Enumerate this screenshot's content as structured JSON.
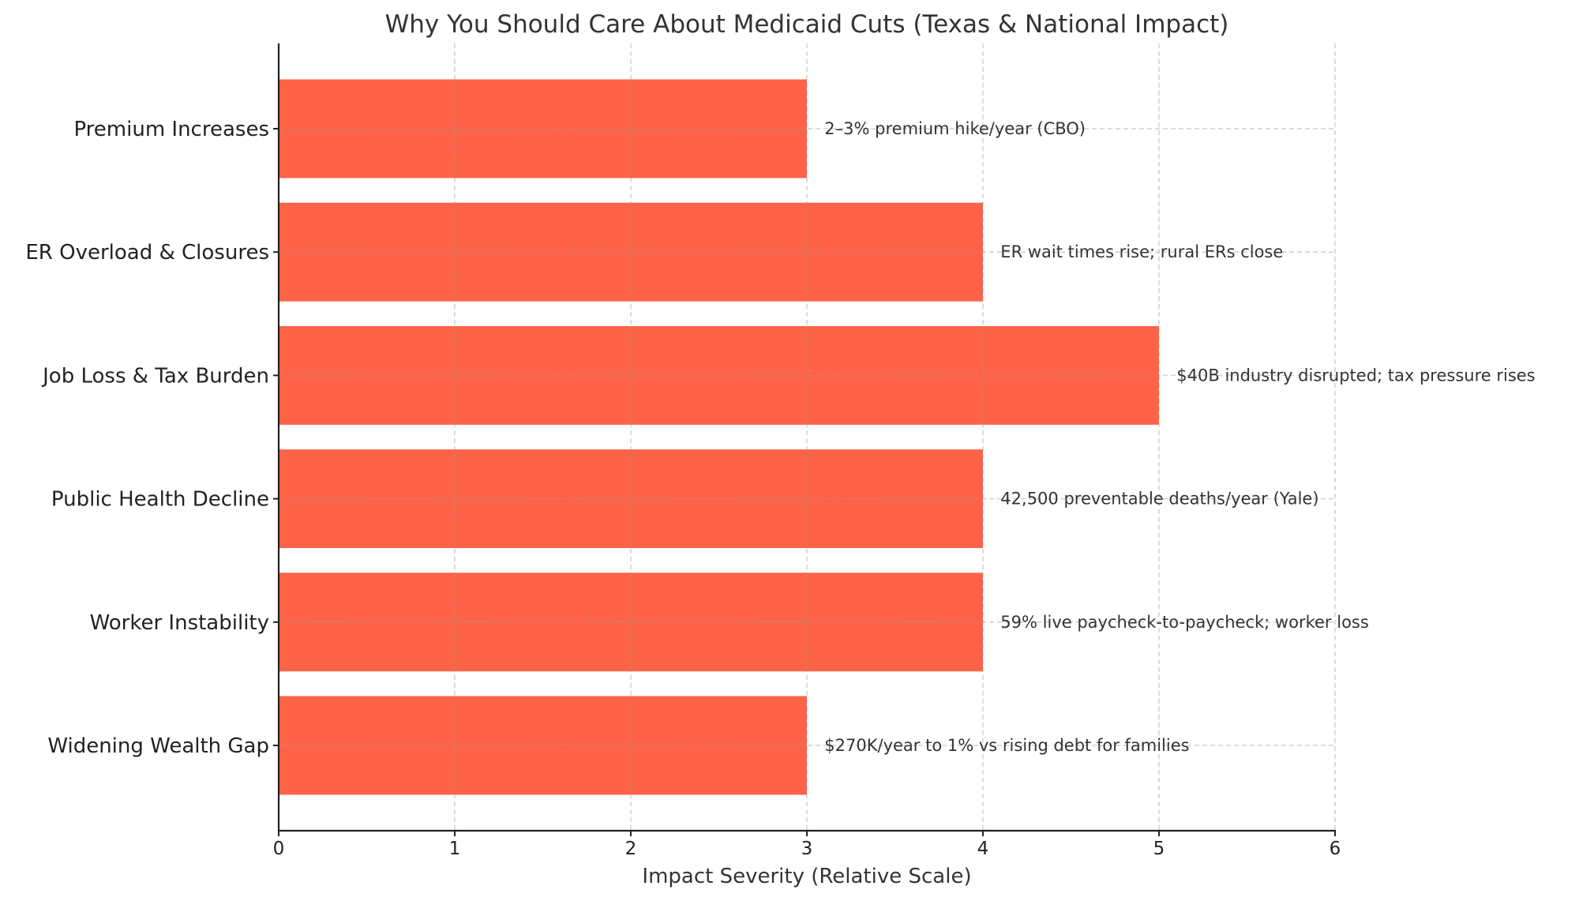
{
  "chart_data": {
    "type": "bar",
    "orientation": "horizontal",
    "title": "Why You Should Care About Medicaid Cuts (Texas & National Impact)",
    "xlabel": "Impact Severity (Relative Scale)",
    "ylabel": "",
    "xlim": [
      0,
      6
    ],
    "xticks": [
      "0",
      "1",
      "2",
      "3",
      "4",
      "5",
      "6"
    ],
    "grid": true,
    "bar_color": "#FF6347",
    "categories": [
      "Premium Increases",
      "ER Overload & Closures",
      "Job Loss & Tax Burden",
      "Public Health Decline",
      "Worker Instability",
      "Widening Wealth Gap"
    ],
    "values": [
      3,
      4,
      5,
      4,
      4,
      3
    ],
    "annotations": [
      "2–3% premium hike/year (CBO)",
      "ER wait times rise; rural ERs close",
      "$40B industry disrupted; tax pressure rises",
      "42,500 preventable deaths/year (Yale)",
      "59% live paycheck-to-paycheck; worker loss",
      "$270K/year to 1% vs rising debt for families"
    ]
  }
}
